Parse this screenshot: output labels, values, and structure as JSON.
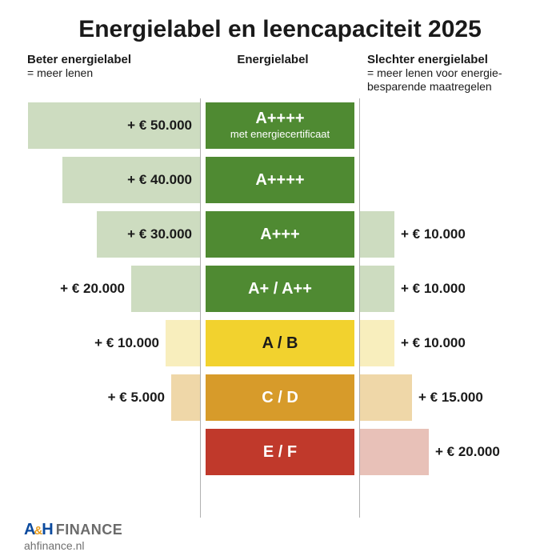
{
  "title": "Energielabel en leencapaciteit 2025",
  "columns": {
    "left": {
      "title": "Beter energielabel",
      "sub": "= meer lenen"
    },
    "center": {
      "title": "Energielabel"
    },
    "right": {
      "title": "Slechter energielabel",
      "sub": "= meer lenen voor energie-besparende maatregelen"
    }
  },
  "labelColors": {
    "green": "#4f8a32",
    "yellow": "#f2d22e",
    "orange": "#d79b2a",
    "red": "#c0392b"
  },
  "barMax": 50000,
  "rows": [
    {
      "label": "A++++",
      "labelSub": "met energiecertificaat",
      "labelColorKey": "green",
      "labelTextDark": false,
      "left": {
        "value": 50000,
        "text": "+ € 50.000",
        "barColor": "#cddcc0"
      },
      "right": null
    },
    {
      "label": "A++++",
      "labelColorKey": "green",
      "labelTextDark": false,
      "left": {
        "value": 40000,
        "text": "+ € 40.000",
        "barColor": "#cddcc0"
      },
      "right": null
    },
    {
      "label": "A+++",
      "labelColorKey": "green",
      "labelTextDark": false,
      "left": {
        "value": 30000,
        "text": "+ € 30.000",
        "barColor": "#cddcc0"
      },
      "right": {
        "value": 10000,
        "text": "+ € 10.000",
        "barColor": "#cddcc0"
      }
    },
    {
      "label": "A+ / A++",
      "labelColorKey": "green",
      "labelTextDark": false,
      "left": {
        "value": 20000,
        "text": "+ € 20.000",
        "barColor": "#cddcc0"
      },
      "right": {
        "value": 10000,
        "text": "+ € 10.000",
        "barColor": "#cddcc0"
      }
    },
    {
      "label": "A / B",
      "labelColorKey": "yellow",
      "labelTextDark": true,
      "left": {
        "value": 10000,
        "text": "+ € 10.000",
        "barColor": "#f8eebd"
      },
      "right": {
        "value": 10000,
        "text": "+ € 10.000",
        "barColor": "#f8eebd"
      }
    },
    {
      "label": "C / D",
      "labelColorKey": "orange",
      "labelTextDark": false,
      "left": {
        "value": 5000,
        "text": "+ € 5.000",
        "barColor": "#efd7a8"
      },
      "right": {
        "value": 15000,
        "text": "+ € 15.000",
        "barColor": "#efd7a8"
      }
    },
    {
      "label": "E / F",
      "labelColorKey": "red",
      "labelTextDark": false,
      "left": null,
      "right": {
        "value": 20000,
        "text": "+ € 20.000",
        "barColor": "#e8c1b8"
      }
    }
  ],
  "footer": {
    "logoParts": {
      "a": "A",
      "amp": "&",
      "h": "H",
      "finance": "FINANCE"
    },
    "site": "ahfinance.nl"
  },
  "style": {
    "sideMaxWidthPx": 215,
    "minBarPx": 36
  }
}
